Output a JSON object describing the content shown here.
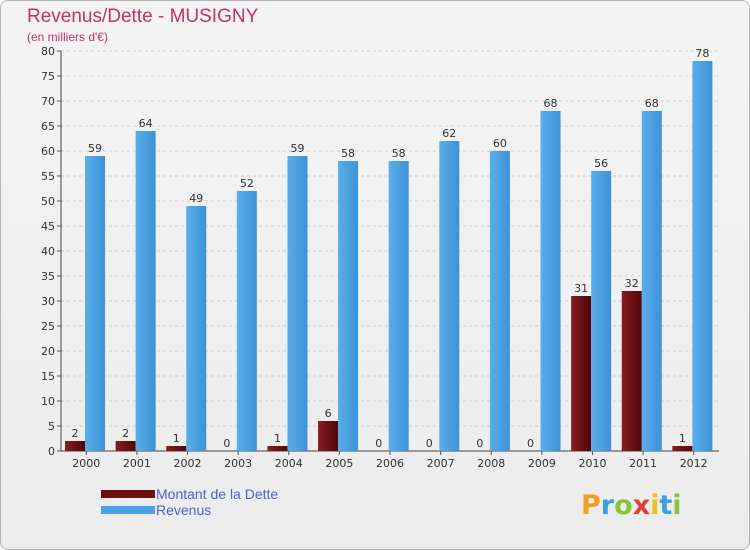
{
  "header": {
    "title": "Revenus/Dette - MUSIGNY",
    "subtitle": "(en milliers d'€)"
  },
  "legend": {
    "items": [
      {
        "label": "Montant de la Dette",
        "color": "#6b0f12"
      },
      {
        "label": "Revenus",
        "color": "#4aa3e6"
      }
    ]
  },
  "logo": {
    "letters": [
      {
        "char": "P",
        "color": "#f0a020"
      },
      {
        "char": "r",
        "color": "#3aa0e0"
      },
      {
        "char": "o",
        "color": "#88c43a"
      },
      {
        "char": "x",
        "color": "#e04030"
      },
      {
        "char": "i",
        "color": "#f0c020"
      },
      {
        "char": "t",
        "color": "#3aa0e0"
      },
      {
        "char": "i",
        "color": "#88c43a"
      }
    ]
  },
  "chart_data": {
    "type": "bar",
    "categories": [
      "2000",
      "2001",
      "2002",
      "2003",
      "2004",
      "2005",
      "2006",
      "2007",
      "2008",
      "2009",
      "2010",
      "2011",
      "2012"
    ],
    "series": [
      {
        "name": "Montant de la Dette",
        "color": "#6b0f12",
        "values": [
          2,
          2,
          1,
          0,
          1,
          6,
          0,
          0,
          0,
          0,
          31,
          32,
          1
        ]
      },
      {
        "name": "Revenus",
        "color": "#4aa3e6",
        "values": [
          59,
          64,
          49,
          52,
          59,
          58,
          58,
          62,
          60,
          68,
          56,
          68,
          78
        ]
      }
    ],
    "ylim": [
      0,
      80
    ],
    "yticks": [
      0,
      5,
      10,
      15,
      20,
      25,
      30,
      35,
      40,
      45,
      50,
      55,
      60,
      65,
      70,
      75,
      80
    ],
    "grid": true
  }
}
